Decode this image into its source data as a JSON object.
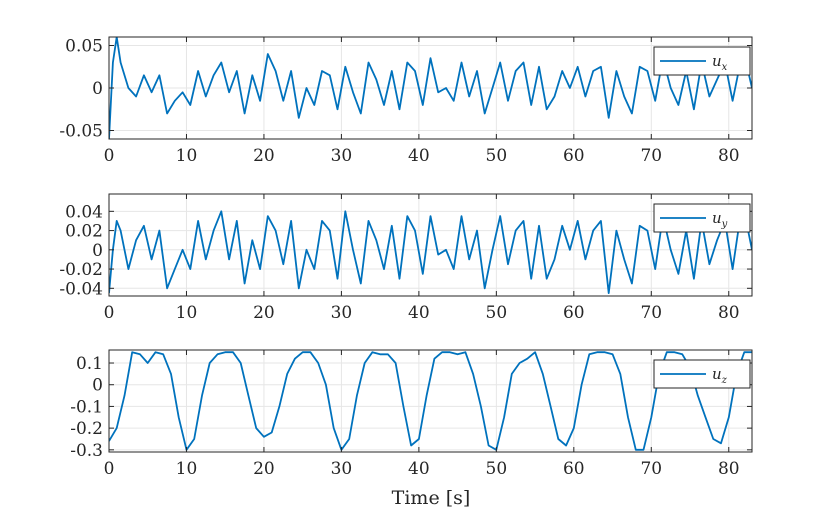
{
  "chart_data": [
    {
      "type": "line",
      "xlabel": "",
      "ylabel": "",
      "xlim": [
        0,
        83
      ],
      "ylim": [
        -0.06,
        0.06
      ],
      "xticks": [
        0,
        10,
        20,
        30,
        40,
        50,
        60,
        70,
        80
      ],
      "yticks": [
        -0.05,
        0,
        0.05
      ],
      "ytick_labels": [
        "-0.05",
        "0",
        "0.05"
      ],
      "grid": true,
      "legend_position": "top-right",
      "series": [
        {
          "name": "u",
          "subscript": "x",
          "color": "#0072BD",
          "x": [
            0,
            0.5,
            1,
            1.5,
            2.5,
            3.5,
            4.5,
            5.5,
            6.5,
            7.5,
            8.5,
            9.5,
            10.5,
            11.5,
            12.5,
            13.5,
            14.5,
            15.5,
            16.5,
            17.5,
            18.5,
            19.5,
            20.5,
            21.5,
            22.5,
            23.5,
            24.5,
            25.5,
            26.5,
            27.5,
            28.5,
            29.5,
            30.5,
            31.5,
            32.5,
            33.5,
            34.5,
            35.5,
            36.5,
            37.5,
            38.5,
            39.5,
            40.5,
            41.5,
            42.5,
            43.5,
            44.5,
            45.5,
            46.5,
            47.5,
            48.5,
            49.5,
            50.5,
            51.5,
            52.5,
            53.5,
            54.5,
            55.5,
            56.5,
            57.5,
            58.5,
            59.5,
            60.5,
            61.5,
            62.5,
            63.5,
            64.5,
            65.5,
            66.5,
            67.5,
            68.5,
            69.5,
            70.5,
            71.5,
            72.5,
            73.5,
            74.5,
            75.5,
            76.5,
            77.5,
            78.5,
            79.5,
            80.5,
            81.5,
            82.5,
            83
          ],
          "y": [
            -0.06,
            0.03,
            0.06,
            0.03,
            0.0,
            -0.01,
            0.015,
            -0.005,
            0.015,
            -0.03,
            -0.015,
            -0.005,
            -0.02,
            0.02,
            -0.01,
            0.015,
            0.03,
            -0.005,
            0.02,
            -0.03,
            0.015,
            -0.015,
            0.04,
            0.02,
            -0.015,
            0.02,
            -0.035,
            0.0,
            -0.02,
            0.02,
            0.015,
            -0.025,
            0.025,
            -0.005,
            -0.03,
            0.03,
            0.01,
            -0.02,
            0.02,
            -0.025,
            0.03,
            0.02,
            -0.02,
            0.035,
            -0.005,
            0.0,
            -0.015,
            0.03,
            -0.01,
            0.02,
            -0.03,
            0.0,
            0.03,
            -0.015,
            0.02,
            0.03,
            -0.02,
            0.025,
            -0.025,
            -0.01,
            0.02,
            0.0,
            0.025,
            -0.01,
            0.02,
            0.025,
            -0.035,
            0.02,
            -0.01,
            -0.03,
            0.025,
            0.02,
            -0.015,
            0.035,
            0.0,
            -0.02,
            0.02,
            -0.025,
            0.03,
            -0.01,
            0.01,
            0.03,
            -0.015,
            0.03,
            0.02,
            0.0
          ]
        }
      ]
    },
    {
      "type": "line",
      "xlabel": "",
      "ylabel": "",
      "xlim": [
        0,
        83
      ],
      "ylim": [
        -0.048,
        0.058
      ],
      "xticks": [
        0,
        10,
        20,
        30,
        40,
        50,
        60,
        70,
        80
      ],
      "yticks": [
        -0.04,
        -0.02,
        0,
        0.02,
        0.04
      ],
      "ytick_labels": [
        "-0.04",
        "-0.02",
        "0",
        "0.02",
        "0.04"
      ],
      "grid": true,
      "legend_position": "top-right",
      "series": [
        {
          "name": "u",
          "subscript": "y",
          "color": "#0072BD",
          "x": [
            0,
            0.5,
            1,
            1.5,
            2.5,
            3.5,
            4.5,
            5.5,
            6.5,
            7.5,
            8.5,
            9.5,
            10.5,
            11.5,
            12.5,
            13.5,
            14.5,
            15.5,
            16.5,
            17.5,
            18.5,
            19.5,
            20.5,
            21.5,
            22.5,
            23.5,
            24.5,
            25.5,
            26.5,
            27.5,
            28.5,
            29.5,
            30.5,
            31.5,
            32.5,
            33.5,
            34.5,
            35.5,
            36.5,
            37.5,
            38.5,
            39.5,
            40.5,
            41.5,
            42.5,
            43.5,
            44.5,
            45.5,
            46.5,
            47.5,
            48.5,
            49.5,
            50.5,
            51.5,
            52.5,
            53.5,
            54.5,
            55.5,
            56.5,
            57.5,
            58.5,
            59.5,
            60.5,
            61.5,
            62.5,
            63.5,
            64.5,
            65.5,
            66.5,
            67.5,
            68.5,
            69.5,
            70.5,
            71.5,
            72.5,
            73.5,
            74.5,
            75.5,
            76.5,
            77.5,
            78.5,
            79.5,
            80.5,
            81.5,
            82.5,
            83
          ],
          "y": [
            -0.045,
            0.0,
            0.03,
            0.02,
            -0.02,
            0.01,
            0.025,
            -0.01,
            0.02,
            -0.04,
            -0.02,
            0.0,
            -0.02,
            0.03,
            -0.01,
            0.02,
            0.04,
            -0.01,
            0.03,
            -0.035,
            0.01,
            -0.02,
            0.035,
            0.02,
            -0.015,
            0.03,
            -0.04,
            0.0,
            -0.02,
            0.03,
            0.02,
            -0.03,
            0.04,
            0.0,
            -0.035,
            0.03,
            0.01,
            -0.02,
            0.025,
            -0.03,
            0.035,
            0.02,
            -0.025,
            0.035,
            -0.005,
            0.0,
            -0.02,
            0.035,
            -0.01,
            0.02,
            -0.04,
            0.0,
            0.035,
            -0.015,
            0.02,
            0.03,
            -0.03,
            0.025,
            -0.03,
            -0.01,
            0.025,
            0.0,
            0.03,
            -0.01,
            0.02,
            0.03,
            -0.045,
            0.02,
            -0.01,
            -0.035,
            0.025,
            0.02,
            -0.02,
            0.035,
            0.0,
            -0.025,
            0.02,
            -0.03,
            0.03,
            -0.015,
            0.01,
            0.03,
            -0.02,
            0.035,
            0.02,
            0.0
          ]
        }
      ]
    },
    {
      "type": "line",
      "xlabel": "Time [s]",
      "ylabel": "",
      "xlim": [
        0,
        83
      ],
      "ylim": [
        -0.31,
        0.16
      ],
      "xticks": [
        0,
        10,
        20,
        30,
        40,
        50,
        60,
        70,
        80
      ],
      "yticks": [
        -0.3,
        -0.2,
        -0.1,
        0,
        0.1
      ],
      "ytick_labels": [
        "-0.3",
        "-0.2",
        "-0.1",
        "0",
        "0.1"
      ],
      "grid": true,
      "legend_position": "top-right",
      "series": [
        {
          "name": "u",
          "subscript": "z",
          "color": "#0072BD",
          "x": [
            0,
            1,
            2,
            3,
            4,
            5,
            6,
            7,
            8,
            9,
            10,
            11,
            12,
            13,
            14,
            15,
            16,
            17,
            18,
            19,
            20,
            21,
            22,
            23,
            24,
            25,
            26,
            27,
            28,
            29,
            30,
            31,
            32,
            33,
            34,
            35,
            36,
            37,
            38,
            39,
            40,
            41,
            42,
            43,
            44,
            45,
            46,
            47,
            48,
            49,
            50,
            51,
            52,
            53,
            54,
            55,
            56,
            57,
            58,
            59,
            60,
            61,
            62,
            63,
            64,
            65,
            66,
            67,
            68,
            69,
            70,
            71,
            72,
            73,
            74,
            75,
            76,
            77,
            78,
            79,
            80,
            81,
            82,
            83
          ],
          "y": [
            -0.26,
            -0.2,
            -0.05,
            0.15,
            0.14,
            0.1,
            0.15,
            0.14,
            0.05,
            -0.15,
            -0.3,
            -0.25,
            -0.05,
            0.1,
            0.14,
            0.15,
            0.15,
            0.1,
            -0.05,
            -0.2,
            -0.24,
            -0.22,
            -0.1,
            0.05,
            0.12,
            0.15,
            0.15,
            0.1,
            0.0,
            -0.2,
            -0.3,
            -0.25,
            -0.05,
            0.1,
            0.15,
            0.14,
            0.14,
            0.1,
            -0.1,
            -0.28,
            -0.25,
            -0.05,
            0.12,
            0.15,
            0.15,
            0.14,
            0.15,
            0.05,
            -0.1,
            -0.28,
            -0.3,
            -0.15,
            0.05,
            0.1,
            0.12,
            0.15,
            0.05,
            -0.1,
            -0.25,
            -0.28,
            -0.2,
            0.0,
            0.14,
            0.15,
            0.15,
            0.14,
            0.05,
            -0.15,
            -0.3,
            -0.3,
            -0.15,
            0.05,
            0.15,
            0.15,
            0.14,
            0.08,
            -0.05,
            -0.15,
            -0.25,
            -0.27,
            -0.15,
            0.05,
            0.15,
            0.15
          ]
        }
      ]
    }
  ]
}
